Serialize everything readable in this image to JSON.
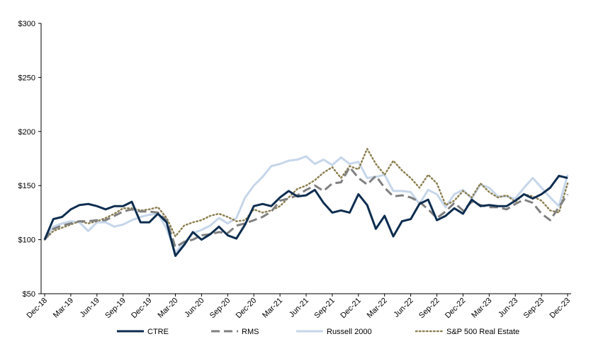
{
  "chart_data": {
    "type": "line",
    "title": "",
    "xlabel": "",
    "ylabel": "",
    "ylim": [
      50,
      300
    ],
    "yticks": [
      "$50",
      "$100",
      "$150",
      "$200",
      "$250",
      "$300"
    ],
    "ytick_values": [
      50,
      100,
      150,
      200,
      250,
      300
    ],
    "x_tick_labels": [
      "Dec-18",
      "Mar-19",
      "Jun-19",
      "Sep-19",
      "Dec-19",
      "Mar-20",
      "Jun-20",
      "Sep-20",
      "Dec-20",
      "Mar-21",
      "Jun-21",
      "Sep-21",
      "Dec-21",
      "Mar-22",
      "Jun-22",
      "Sep-22",
      "Dec-22",
      "Mar-23",
      "Jun-23",
      "Sep-23",
      "Dec-23"
    ],
    "grid": false,
    "legend_position": "bottom",
    "series": [
      {
        "name": "CTRE",
        "color": "#0e2d4f",
        "style": "solid",
        "values": [
          100,
          119,
          121,
          128,
          132,
          133,
          131,
          128,
          131,
          131,
          135,
          116,
          116,
          124,
          116,
          85,
          95,
          107,
          100,
          105,
          112,
          104,
          101,
          114,
          131,
          133,
          131,
          139,
          145,
          140,
          141,
          146,
          134,
          125,
          127,
          125,
          142,
          132,
          110,
          122,
          103,
          117,
          119,
          133,
          137,
          118,
          122,
          129,
          124,
          137,
          131,
          132,
          131,
          131,
          136,
          142,
          138,
          142,
          148,
          159,
          157
        ]
      },
      {
        "name": "RMS",
        "color": "#808080",
        "style": "dashed",
        "values": [
          100,
          110,
          113,
          115,
          117,
          117,
          118,
          118,
          122,
          126,
          128,
          126,
          126,
          125,
          118,
          93,
          98,
          100,
          104,
          105,
          107,
          106,
          113,
          115,
          118,
          121,
          126,
          136,
          138,
          141,
          146,
          150,
          145,
          152,
          153,
          167,
          157,
          151,
          159,
          148,
          140,
          141,
          139,
          135,
          128,
          120,
          126,
          134,
          127,
          135,
          132,
          130,
          130,
          128,
          133,
          137,
          134,
          124,
          118,
          130,
          142
        ]
      },
      {
        "name": "Russell 2000",
        "color": "#c6d6ea",
        "style": "solid",
        "values": [
          100,
          112,
          115,
          117,
          116,
          108,
          116,
          116,
          112,
          114,
          118,
          121,
          123,
          124,
          110,
          88,
          97,
          106,
          109,
          113,
          120,
          115,
          120,
          139,
          150,
          158,
          168,
          170,
          173,
          174,
          177,
          170,
          174,
          169,
          176,
          170,
          172,
          157,
          158,
          160,
          145,
          145,
          144,
          133,
          146,
          142,
          130,
          142,
          146,
          138,
          151,
          148,
          140,
          140,
          138,
          148,
          157,
          148,
          139,
          131,
          160
        ]
      },
      {
        "name": "S&P 500 Real Estate",
        "color": "#8c8052",
        "style": "dotted",
        "values": [
          100,
          108,
          111,
          114,
          117,
          115,
          117,
          120,
          124,
          129,
          129,
          127,
          128,
          130,
          120,
          103,
          113,
          116,
          118,
          122,
          124,
          121,
          117,
          118,
          128,
          125,
          127,
          131,
          139,
          147,
          150,
          155,
          162,
          167,
          157,
          168,
          165,
          184,
          170,
          160,
          173,
          164,
          157,
          148,
          160,
          152,
          132,
          136,
          145,
          139,
          152,
          144,
          139,
          141,
          135,
          142,
          140,
          136,
          127,
          125,
          152
        ]
      }
    ]
  }
}
